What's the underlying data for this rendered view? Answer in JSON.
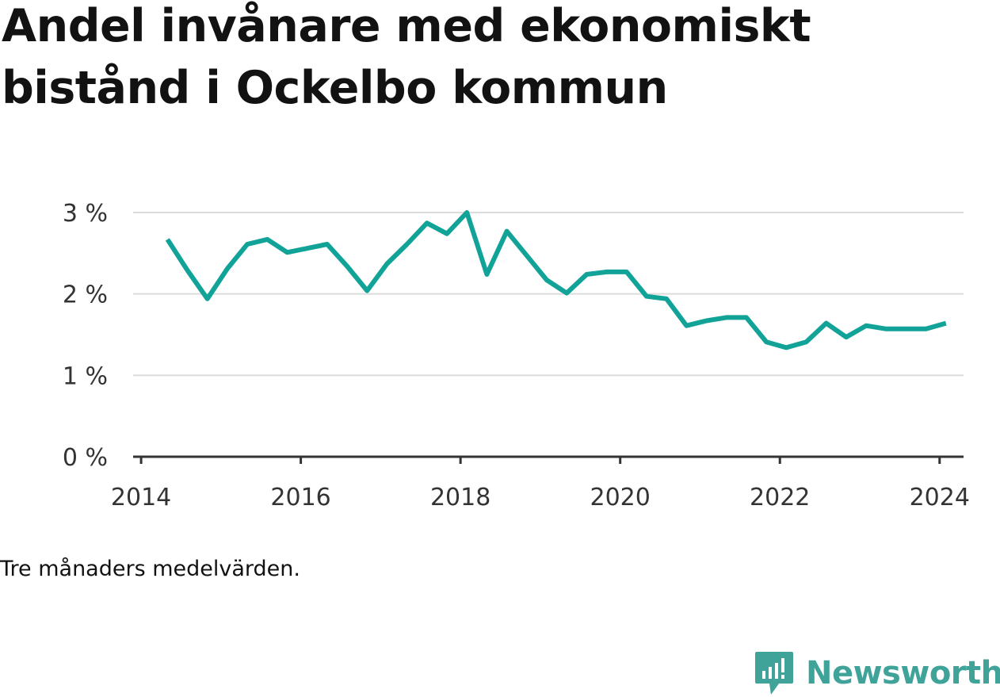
{
  "header": {
    "title": "Andel invånare med ekonomiskt bistånd i Ockelbo kommun"
  },
  "note": "Tre månaders medelvärden.",
  "brand": {
    "name": "Newsworthy",
    "icon": "newsworthy-logo-icon",
    "color": "#3fa39a"
  },
  "chart_data": {
    "type": "line",
    "title": "Andel invånare med ekonomiskt bistånd i Ockelbo kommun",
    "xlabel": "",
    "ylabel": "",
    "xlim": [
      2013.9,
      2024.3
    ],
    "ylim": [
      0,
      3
    ],
    "x_ticks": [
      {
        "value": 2014,
        "label": "2014"
      },
      {
        "value": 2016,
        "label": "2016"
      },
      {
        "value": 2018,
        "label": "2018"
      },
      {
        "value": 2020,
        "label": "2020"
      },
      {
        "value": 2022,
        "label": "2022"
      },
      {
        "value": 2024,
        "label": "2024"
      }
    ],
    "y_ticks": [
      {
        "value": 0,
        "label": "0 %"
      },
      {
        "value": 1,
        "label": "1 %"
      },
      {
        "value": 2,
        "label": "2 %"
      },
      {
        "value": 3,
        "label": "3 %"
      }
    ],
    "grid": true,
    "line_color": "#12a398",
    "series": [
      {
        "name": "",
        "points": [
          {
            "x": 2014.33,
            "y": 2.67
          },
          {
            "x": 2014.58,
            "y": 2.29
          },
          {
            "x": 2014.83,
            "y": 1.94
          },
          {
            "x": 2015.08,
            "y": 2.31
          },
          {
            "x": 2015.33,
            "y": 2.61
          },
          {
            "x": 2015.58,
            "y": 2.67
          },
          {
            "x": 2015.83,
            "y": 2.51
          },
          {
            "x": 2016.08,
            "y": 2.56
          },
          {
            "x": 2016.33,
            "y": 2.61
          },
          {
            "x": 2016.58,
            "y": 2.34
          },
          {
            "x": 2016.83,
            "y": 2.04
          },
          {
            "x": 2017.08,
            "y": 2.37
          },
          {
            "x": 2017.33,
            "y": 2.61
          },
          {
            "x": 2017.58,
            "y": 2.87
          },
          {
            "x": 2017.83,
            "y": 2.74
          },
          {
            "x": 2018.08,
            "y": 3.0
          },
          {
            "x": 2018.33,
            "y": 2.24
          },
          {
            "x": 2018.58,
            "y": 2.77
          },
          {
            "x": 2018.83,
            "y": 2.47
          },
          {
            "x": 2019.08,
            "y": 2.17
          },
          {
            "x": 2019.33,
            "y": 2.01
          },
          {
            "x": 2019.58,
            "y": 2.24
          },
          {
            "x": 2019.83,
            "y": 2.27
          },
          {
            "x": 2020.08,
            "y": 2.27
          },
          {
            "x": 2020.33,
            "y": 1.97
          },
          {
            "x": 2020.58,
            "y": 1.94
          },
          {
            "x": 2020.83,
            "y": 1.61
          },
          {
            "x": 2021.08,
            "y": 1.67
          },
          {
            "x": 2021.33,
            "y": 1.71
          },
          {
            "x": 2021.58,
            "y": 1.71
          },
          {
            "x": 2021.83,
            "y": 1.41
          },
          {
            "x": 2022.08,
            "y": 1.34
          },
          {
            "x": 2022.33,
            "y": 1.41
          },
          {
            "x": 2022.58,
            "y": 1.64
          },
          {
            "x": 2022.83,
            "y": 1.47
          },
          {
            "x": 2023.08,
            "y": 1.61
          },
          {
            "x": 2023.33,
            "y": 1.57
          },
          {
            "x": 2023.58,
            "y": 1.57
          },
          {
            "x": 2023.83,
            "y": 1.57
          },
          {
            "x": 2024.08,
            "y": 1.64
          }
        ]
      }
    ]
  }
}
